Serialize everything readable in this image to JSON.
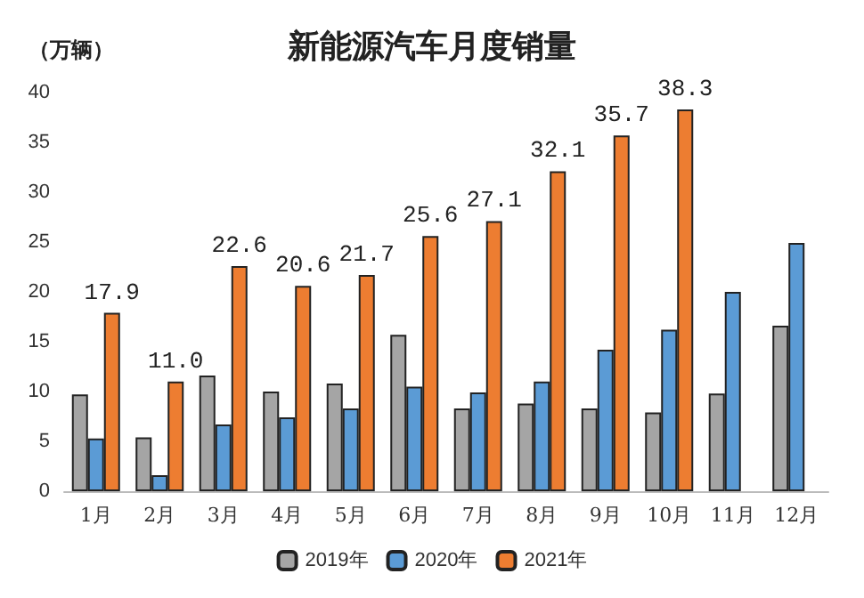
{
  "chart_data": {
    "type": "bar",
    "title": "新能源汽车月度销量",
    "ylabel": "（万辆）",
    "categories": [
      "1月",
      "2月",
      "3月",
      "4月",
      "5月",
      "6月",
      "7月",
      "8月",
      "9月",
      "10月",
      "11月",
      "12月"
    ],
    "series": [
      {
        "name": "2019年",
        "color": "#a5a5a5",
        "values": [
          9.7,
          5.4,
          11.6,
          10.0,
          10.8,
          15.7,
          8.3,
          8.8,
          8.3,
          7.9,
          9.8,
          16.6
        ]
      },
      {
        "name": "2020年",
        "color": "#5b9bd5",
        "values": [
          5.3,
          1.6,
          6.7,
          7.4,
          8.3,
          10.5,
          9.9,
          11.0,
          14.2,
          16.2,
          20.0,
          24.9
        ]
      },
      {
        "name": "2021年",
        "color": "#ed7d31",
        "values": [
          17.9,
          11.0,
          22.6,
          20.6,
          21.7,
          25.6,
          27.1,
          32.1,
          35.7,
          38.3,
          null,
          null
        ],
        "value_labels": [
          "17.9",
          "11.0",
          "22.6",
          "20.6",
          "21.7",
          "25.6",
          "27.1",
          "32.1",
          "35.7",
          "38.3",
          null,
          null
        ]
      }
    ],
    "ylim": [
      0,
      40
    ],
    "yticks": [
      0,
      5,
      10,
      15,
      20,
      25,
      30,
      35,
      40
    ],
    "grid": false,
    "legend": "bottom"
  }
}
